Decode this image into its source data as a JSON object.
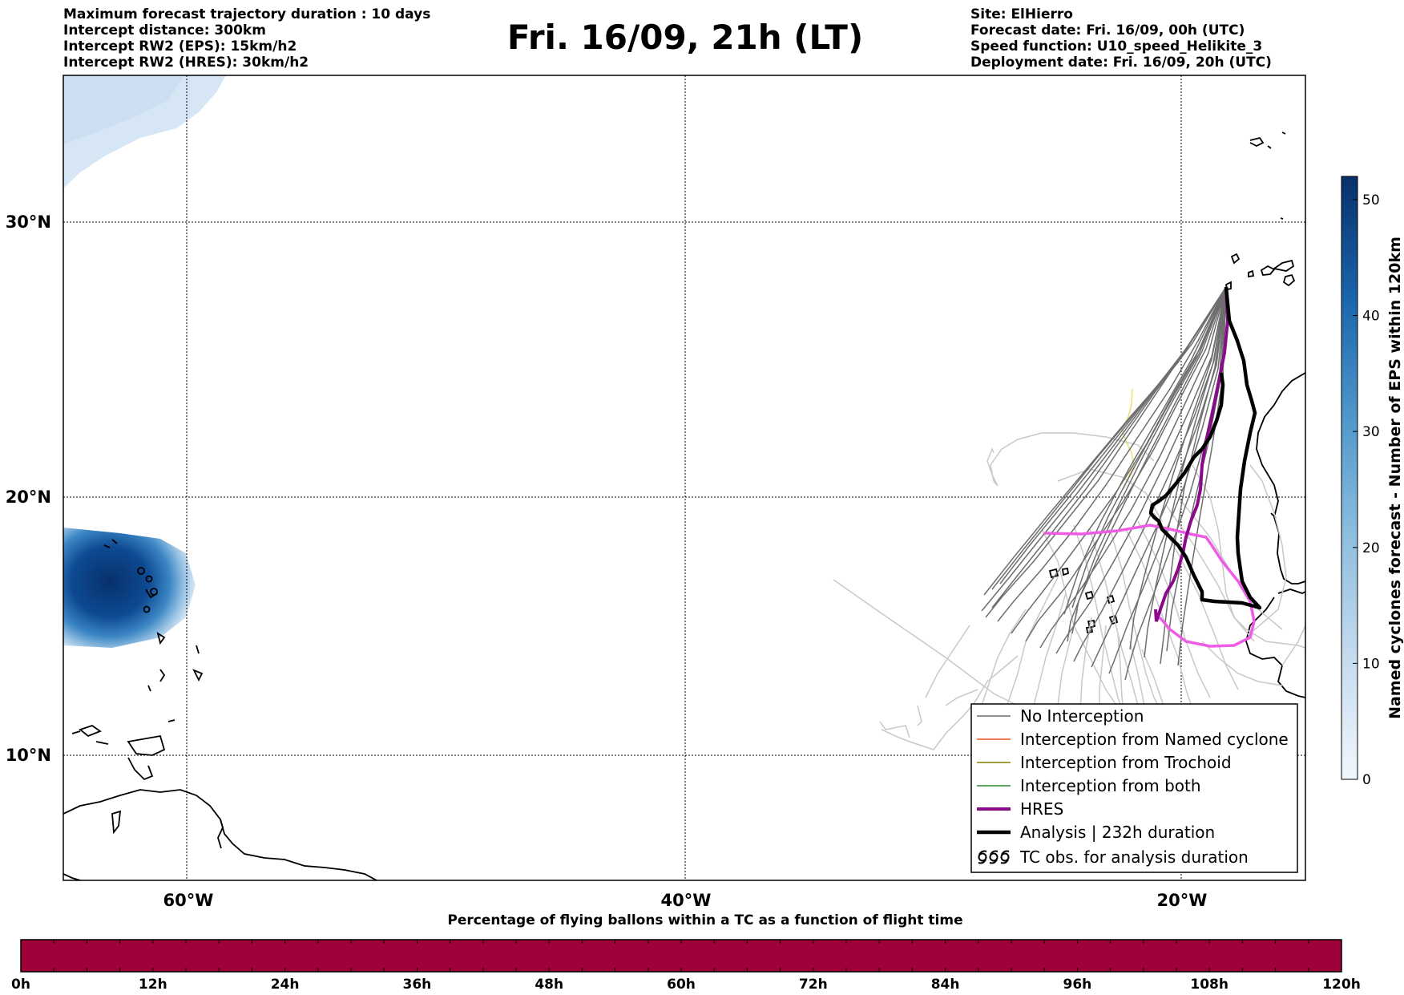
{
  "header": {
    "left_lines": [
      "Maximum forecast trajectory duration : 10 days",
      "Intercept distance: 300km",
      "Intercept RW2 (EPS):  15km/h2",
      "Intercept RW2 (HRES): 30km/h2"
    ],
    "title": "Fri. 16/09, 21h (LT)",
    "right_lines": [
      "Site: ElHierro",
      "Forecast date: Fri. 16/09, 00h (UTC)",
      "Speed function: U10_speed_Helikite_3",
      "Deployment date: Fri. 16/09, 20h (UTC)"
    ]
  },
  "map": {
    "lat_labels": [
      "30°N",
      "20°N",
      "10°N"
    ],
    "lon_labels": [
      "60°W",
      "40°W",
      "20°W"
    ],
    "colors": {
      "no_interception": "#6e6e6e",
      "older_tracks": "#c8c8c8",
      "named_cyclone": "#e8501e",
      "trochoid": "#808000",
      "both": "#2a8a2a",
      "hres": "#8a0a8a",
      "analysis": "#000000",
      "magenta_track": "#ee5ce6",
      "yellow_track": "#e8e070",
      "cyclone_density": "#08306b"
    }
  },
  "legend": {
    "items": [
      {
        "label": "No Interception",
        "icon": "gray-line-icon"
      },
      {
        "label": "Interception from Named cyclone",
        "icon": "orange-line-icon"
      },
      {
        "label": "Interception from Trochoid",
        "icon": "olive-line-icon"
      },
      {
        "label": "Interception from both",
        "icon": "green-line-icon"
      },
      {
        "label": "HRES",
        "icon": "purple-thick-line-icon"
      },
      {
        "label": "Analysis | 232h duration",
        "icon": "black-thick-line-icon"
      },
      {
        "label": "TC obs. for analysis duration",
        "icon": "cyclone-symbols-icon"
      }
    ]
  },
  "colorbar": {
    "title": "Named cyclones forecast - Number of EPS within 120km",
    "ticks": [
      "0",
      "10",
      "20",
      "30",
      "40",
      "50"
    ],
    "range": [
      0,
      52
    ]
  },
  "flight_bar": {
    "title": "Percentage of flying ballons within a TC as a function of flight time",
    "ticks": [
      "0h",
      "12h",
      "24h",
      "36h",
      "48h",
      "60h",
      "72h",
      "84h",
      "96h",
      "108h",
      "120h"
    ],
    "color": "#9e0039"
  }
}
